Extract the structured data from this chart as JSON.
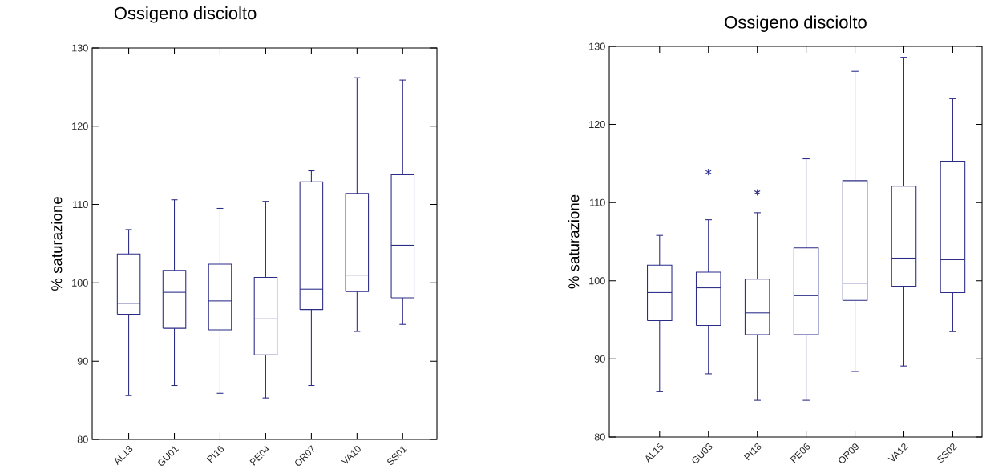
{
  "chart_data": [
    {
      "type": "box",
      "title": "Ossigeno disciolto",
      "ylabel": "% saturazione",
      "categories": [
        "AL13",
        "GU01",
        "PI16",
        "PE04",
        "OR07",
        "VA10",
        "SS01"
      ],
      "ylim": [
        80,
        130
      ],
      "yticks": [
        80,
        90,
        100,
        110,
        120,
        130
      ],
      "series": [
        {
          "color": "#2b2b88",
          "boxes": [
            {
              "low": 85.6,
              "q1": 96.0,
              "median": 97.4,
              "q3": 103.7,
              "high": 106.8
            },
            {
              "low": 86.9,
              "q1": 94.2,
              "median": 98.8,
              "q3": 101.6,
              "high": 110.6
            },
            {
              "low": 85.9,
              "q1": 94.0,
              "median": 97.7,
              "q3": 102.4,
              "high": 109.5
            },
            {
              "low": 85.3,
              "q1": 90.8,
              "median": 95.4,
              "q3": 100.7,
              "high": 110.4
            },
            {
              "low": 86.9,
              "q1": 96.6,
              "median": 99.2,
              "q3": 112.9,
              "high": 114.3
            },
            {
              "low": 93.8,
              "q1": 98.9,
              "median": 101.0,
              "q3": 111.4,
              "high": 126.2
            },
            {
              "low": 94.7,
              "q1": 98.1,
              "median": 104.8,
              "q3": 113.8,
              "high": 125.9
            }
          ]
        }
      ]
    },
    {
      "type": "box",
      "title": "Ossigeno disciolto",
      "ylabel": "% saturazione",
      "categories": [
        "AL15",
        "GU03",
        "PI18",
        "PE06",
        "OR09",
        "VA12",
        "SS02"
      ],
      "ylim": [
        80,
        130
      ],
      "yticks": [
        80,
        90,
        100,
        110,
        120,
        130
      ],
      "series": [
        {
          "color": "#2b2b88",
          "boxes": [
            {
              "low": 85.8,
              "q1": 94.9,
              "median": 98.5,
              "q3": 102.0,
              "high": 105.8
            },
            {
              "low": 88.1,
              "q1": 94.3,
              "median": 99.1,
              "q3": 101.1,
              "high": 107.8,
              "outliers": [
                113.9
              ]
            },
            {
              "low": 84.7,
              "q1": 93.1,
              "median": 95.9,
              "q3": 100.2,
              "high": 108.7,
              "outliers": [
                111.3
              ]
            },
            {
              "low": 84.7,
              "q1": 93.1,
              "median": 98.1,
              "q3": 104.2,
              "high": 115.6
            },
            {
              "low": 88.4,
              "q1": 97.5,
              "median": 99.7,
              "q3": 112.8,
              "high": 126.8
            },
            {
              "low": 89.1,
              "q1": 99.3,
              "median": 102.9,
              "q3": 112.1,
              "high": 128.6
            },
            {
              "low": 93.5,
              "q1": 98.5,
              "median": 102.7,
              "q3": 115.3,
              "high": 123.3
            }
          ]
        }
      ]
    }
  ]
}
